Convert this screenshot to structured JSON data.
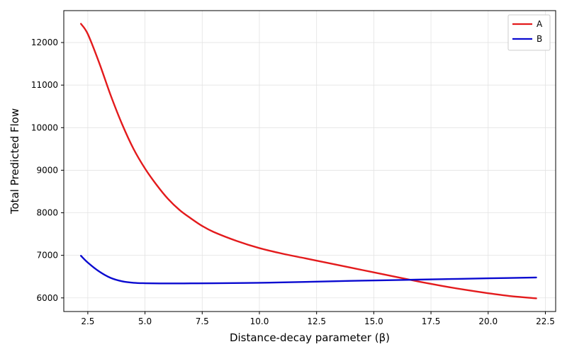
{
  "chart_data": {
    "type": "line",
    "title": "",
    "xlabel": "Distance-decay parameter (β)",
    "ylabel": "Total Predicted Flow",
    "xlim": [
      1.45,
      22.95
    ],
    "ylim": [
      5680,
      12750
    ],
    "xticks": [
      2.5,
      5.0,
      7.5,
      10.0,
      12.5,
      15.0,
      17.5,
      20.0,
      22.5
    ],
    "xtick_labels": [
      "2.5",
      "5.0",
      "7.5",
      "10.0",
      "12.5",
      "15.0",
      "17.5",
      "20.0",
      "22.5"
    ],
    "yticks": [
      6000,
      7000,
      8000,
      9000,
      10000,
      11000,
      12000
    ],
    "ytick_labels": [
      "6000",
      "7000",
      "8000",
      "9000",
      "10000",
      "11000",
      "12000"
    ],
    "grid": true,
    "legend_position": "top-right",
    "series": [
      {
        "name": "A",
        "color": "#e31a1c",
        "x": [
          2.2,
          2.5,
          3.0,
          3.5,
          4.0,
          4.5,
          5.0,
          5.5,
          6.0,
          6.5,
          7.0,
          7.5,
          8.0,
          9.0,
          10.0,
          11.0,
          12.0,
          13.0,
          14.0,
          15.0,
          16.0,
          17.0,
          18.0,
          19.0,
          20.0,
          21.0,
          22.1
        ],
        "y": [
          12440,
          12200,
          11520,
          10760,
          10080,
          9500,
          9040,
          8660,
          8330,
          8070,
          7870,
          7690,
          7550,
          7340,
          7170,
          7040,
          6930,
          6820,
          6710,
          6600,
          6490,
          6380,
          6280,
          6190,
          6110,
          6040,
          5990
        ]
      },
      {
        "name": "B",
        "color": "#0a0ad0",
        "x": [
          2.2,
          2.5,
          3.0,
          3.5,
          4.0,
          4.5,
          5.0,
          6.0,
          7.0,
          8.0,
          10.0,
          12.0,
          14.0,
          16.0,
          18.0,
          20.0,
          22.1
        ],
        "y": [
          6990,
          6830,
          6620,
          6470,
          6390,
          6355,
          6345,
          6340,
          6342,
          6345,
          6355,
          6375,
          6400,
          6420,
          6440,
          6460,
          6480
        ]
      }
    ]
  }
}
